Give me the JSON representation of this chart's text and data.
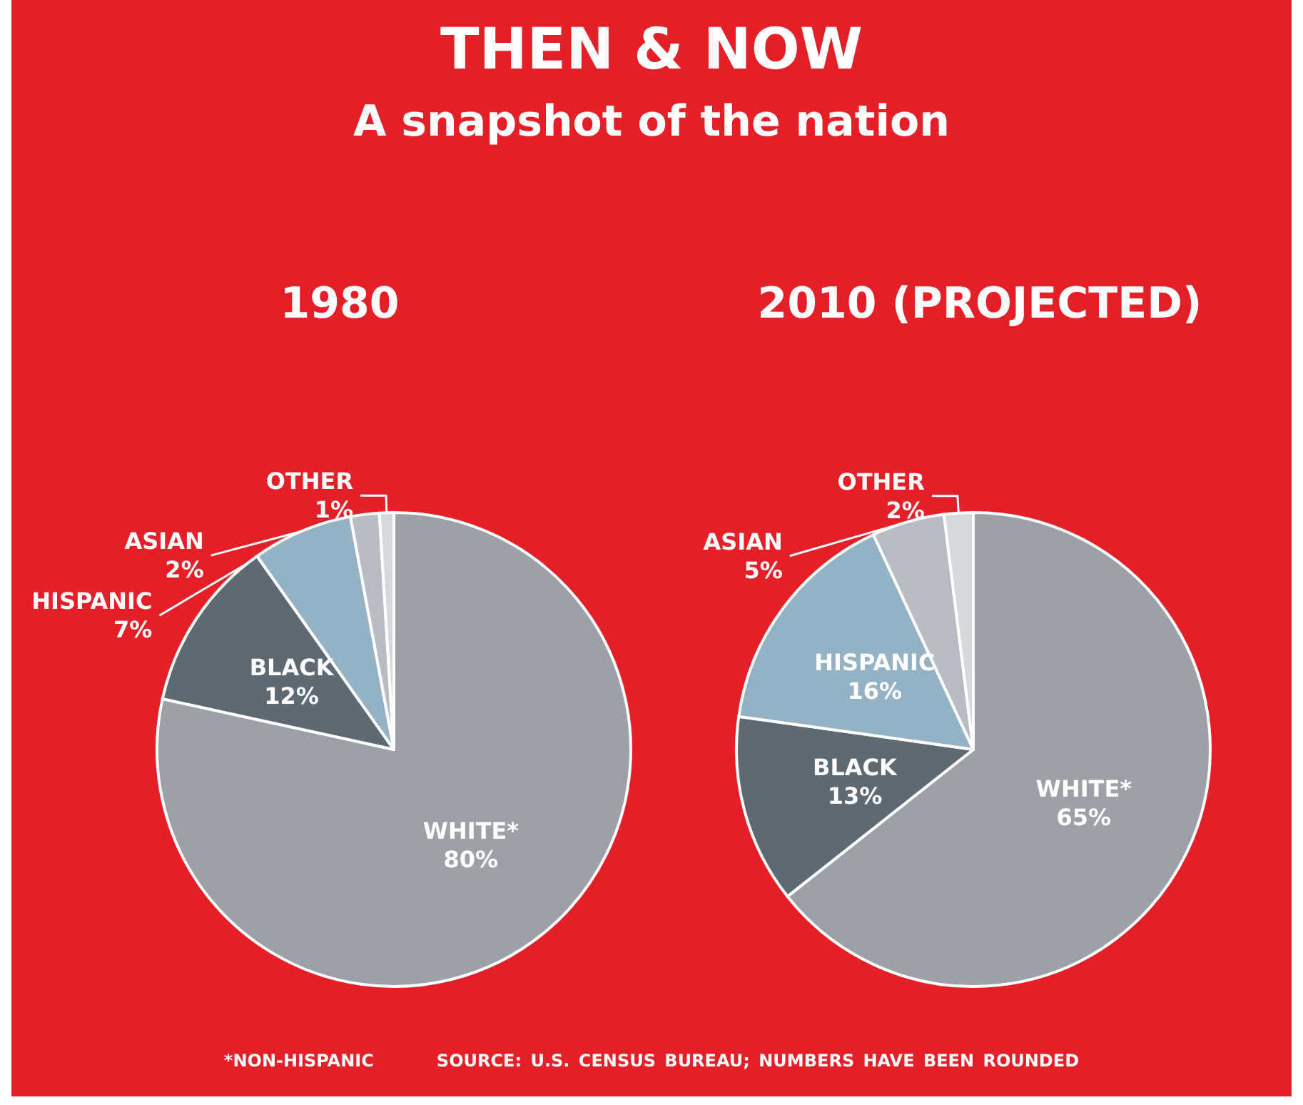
{
  "chart_data": [
    {
      "type": "other",
      "title": "THEN & NOW",
      "subtitle": "A snapshot of the nation",
      "annotations": [
        "*NON-HISPANIC",
        "SOURCE: U.S. CENSUS BUREAU; NUMBERS HAVE BEEN ROUNDED"
      ]
    },
    {
      "type": "pie",
      "title": "1980",
      "categories": [
        "WHITE*",
        "BLACK",
        "HISPANIC",
        "ASIAN",
        "OTHER"
      ],
      "values": [
        80,
        12,
        7,
        2,
        1
      ],
      "value_labels": [
        "80%",
        "12%",
        "7%",
        "2%",
        "1%"
      ],
      "colors": [
        "#9ba1a7",
        "#5e6a73",
        "#93b3c5",
        "#b7bdc2",
        "#d5d9dc"
      ],
      "legend": false
    },
    {
      "type": "pie",
      "title": "2010 (PROJECTED)",
      "categories": [
        "WHITE*",
        "BLACK",
        "HISPANIC",
        "ASIAN",
        "OTHER"
      ],
      "values": [
        65,
        13,
        16,
        5,
        2
      ],
      "value_labels": [
        "65%",
        "13%",
        "16%",
        "5%",
        "2%"
      ],
      "colors": [
        "#9ba1a7",
        "#5e6a73",
        "#93b3c5",
        "#b7bdc2",
        "#d5d9dc"
      ],
      "legend": false
    }
  ]
}
